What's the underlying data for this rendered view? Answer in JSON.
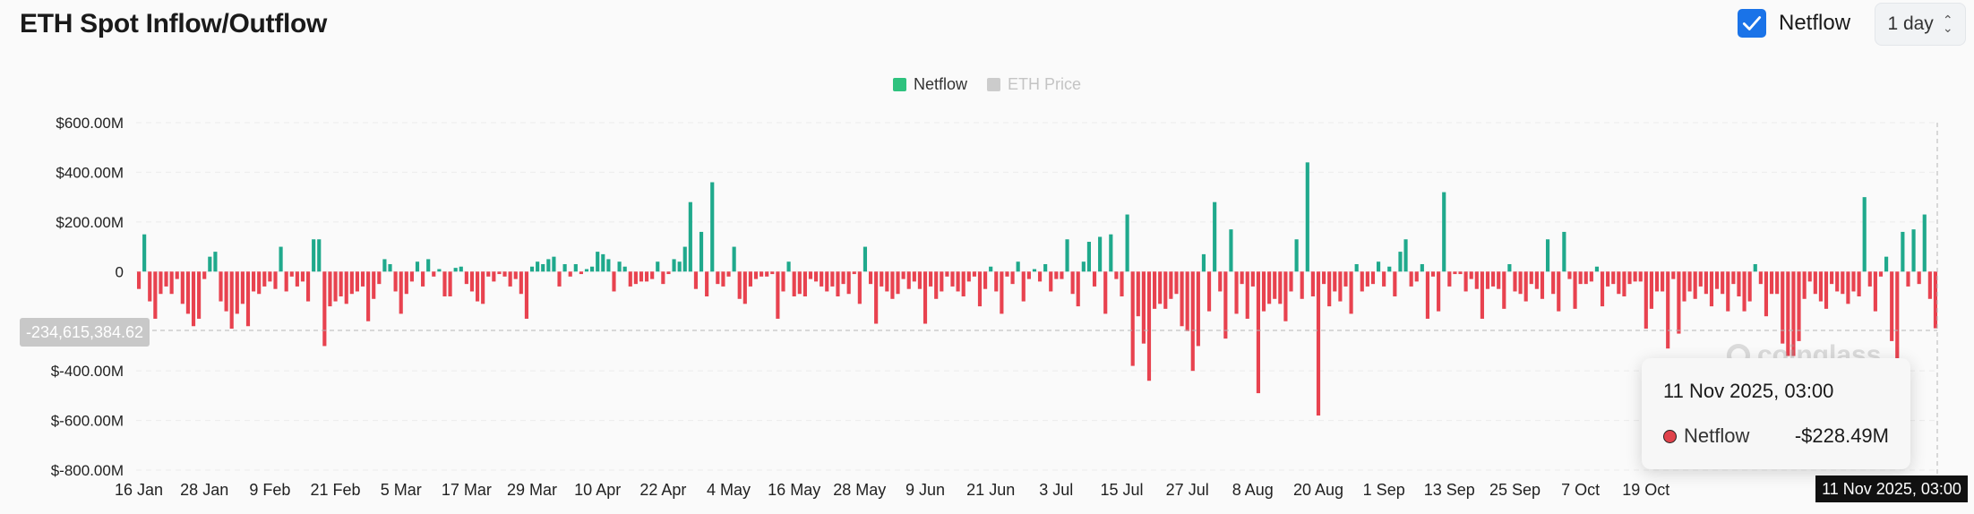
{
  "header": {
    "title": "ETH Spot Inflow/Outflow",
    "netflow_toggle_label": "Netflow",
    "period_value": "1 day"
  },
  "colors": {
    "inflow": "#1fa98c",
    "outflow": "#e8424f",
    "accent": "#1a73e8",
    "legend_netflow": "#2ec27e",
    "legend_price": "#cccccc"
  },
  "crosshair": {
    "y_label": "-234,615,384.62",
    "x_label": "11 Nov 2025, 03:00"
  },
  "watermark": {
    "text": "coinglass"
  },
  "tooltip": {
    "date": "11 Nov 2025, 03:00",
    "series": "Netflow",
    "value": "-$228.49M"
  },
  "chart_data": {
    "type": "bar",
    "legend": [
      {
        "name": "Netflow",
        "active": true
      },
      {
        "name": "ETH Price",
        "active": false
      }
    ],
    "legend_position": "top-center",
    "y_ticks": [
      "$600.00M",
      "$400.00M",
      "$200.00M",
      "0",
      "$-400.00M",
      "$-600.00M",
      "$-800.00M"
    ],
    "y_tick_values": [
      600,
      400,
      200,
      0,
      -400,
      -600,
      -800
    ],
    "ylim": [
      -800,
      600
    ],
    "unit": "USD millions",
    "x_ticks": [
      "16 Jan",
      "28 Jan",
      "9 Feb",
      "21 Feb",
      "5 Mar",
      "17 Mar",
      "29 Mar",
      "10 Apr",
      "22 Apr",
      "4 May",
      "16 May",
      "28 May",
      "9 Jun",
      "21 Jun",
      "3 Jul",
      "15 Jul",
      "27 Jul",
      "8 Aug",
      "20 Aug",
      "1 Sep",
      "13 Sep",
      "25 Sep",
      "7 Oct",
      "19 Oct"
    ],
    "x_tick_index": [
      0,
      12,
      24,
      36,
      48,
      60,
      72,
      84,
      96,
      108,
      120,
      132,
      144,
      156,
      168,
      180,
      192,
      204,
      216,
      228,
      240,
      252,
      264,
      276
    ],
    "grid": true,
    "values": [
      -70,
      150,
      -120,
      -190,
      -90,
      -60,
      -90,
      -30,
      -130,
      -170,
      -220,
      -190,
      -30,
      60,
      80,
      -120,
      -160,
      -230,
      -170,
      -130,
      -220,
      -80,
      -90,
      -60,
      -40,
      -70,
      100,
      -80,
      -20,
      -60,
      -40,
      -120,
      130,
      130,
      -300,
      -140,
      -120,
      -100,
      -130,
      -90,
      -80,
      -60,
      -200,
      -110,
      -50,
      50,
      30,
      -80,
      -170,
      -90,
      -40,
      40,
      -60,
      50,
      -20,
      10,
      -100,
      -100,
      15,
      20,
      -50,
      -80,
      -120,
      -130,
      -20,
      -40,
      -10,
      -20,
      -60,
      -30,
      -90,
      -190,
      20,
      40,
      30,
      50,
      60,
      -60,
      30,
      -20,
      30,
      -10,
      10,
      20,
      80,
      70,
      50,
      -80,
      40,
      20,
      -60,
      -50,
      -40,
      -40,
      -30,
      40,
      -50,
      -10,
      50,
      40,
      100,
      280,
      -70,
      160,
      -100,
      360,
      -50,
      -60,
      -20,
      100,
      -110,
      -130,
      -60,
      -30,
      -20,
      -20,
      -10,
      -190,
      -80,
      40,
      -100,
      -90,
      -100,
      -30,
      -40,
      -60,
      -80,
      -60,
      -100,
      -50,
      -90,
      -10,
      -130,
      100,
      -50,
      -210,
      -60,
      -80,
      -110,
      -90,
      -30,
      -70,
      -40,
      -70,
      -210,
      -60,
      -110,
      -80,
      -20,
      -60,
      -80,
      -100,
      -40,
      -20,
      -140,
      -70,
      20,
      -80,
      -170,
      -20,
      -50,
      40,
      -120,
      -30,
      10,
      -40,
      30,
      -80,
      -30,
      -30,
      130,
      -90,
      -140,
      40,
      120,
      -60,
      140,
      -170,
      150,
      -30,
      -100,
      230,
      -380,
      -180,
      -290,
      -440,
      -150,
      -130,
      -150,
      -110,
      -90,
      -220,
      -240,
      -400,
      -300,
      70,
      -160,
      280,
      -80,
      -270,
      170,
      -170,
      -50,
      -190,
      -60,
      -490,
      -160,
      -130,
      -110,
      -130,
      -200,
      -80,
      130,
      -110,
      440,
      -100,
      -580,
      -50,
      -140,
      -80,
      -120,
      -60,
      -170,
      30,
      -80,
      -60,
      -50,
      40,
      -60,
      20,
      -100,
      80,
      130,
      -60,
      -40,
      30,
      -190,
      -20,
      -160,
      320,
      -60,
      -10,
      -10,
      -80,
      -30,
      -70,
      -190,
      -70,
      -60,
      -70,
      -150,
      30,
      -80,
      -90,
      -120,
      -50,
      -70,
      -110,
      130,
      -90,
      -160,
      160,
      -30,
      -150,
      -50,
      -50,
      -40,
      20,
      -140,
      -60,
      -50,
      -90,
      -100,
      -50,
      -40,
      -40,
      -230,
      -150,
      -80,
      -80,
      -310,
      -30,
      -250,
      -120,
      -80,
      -110,
      -60,
      -90,
      -140,
      -70,
      -90,
      -160,
      -50,
      -100,
      -160,
      -120,
      30,
      -50,
      -180,
      -90,
      -90,
      -290,
      -340,
      -340,
      -280,
      -110,
      -40,
      -90,
      -120,
      -150,
      -50,
      -80,
      -90,
      -130,
      -80,
      -100,
      300,
      -60,
      -160,
      -20,
      60,
      -280,
      -380,
      160,
      -60,
      170,
      -50,
      230,
      -110,
      -228.49
    ]
  }
}
